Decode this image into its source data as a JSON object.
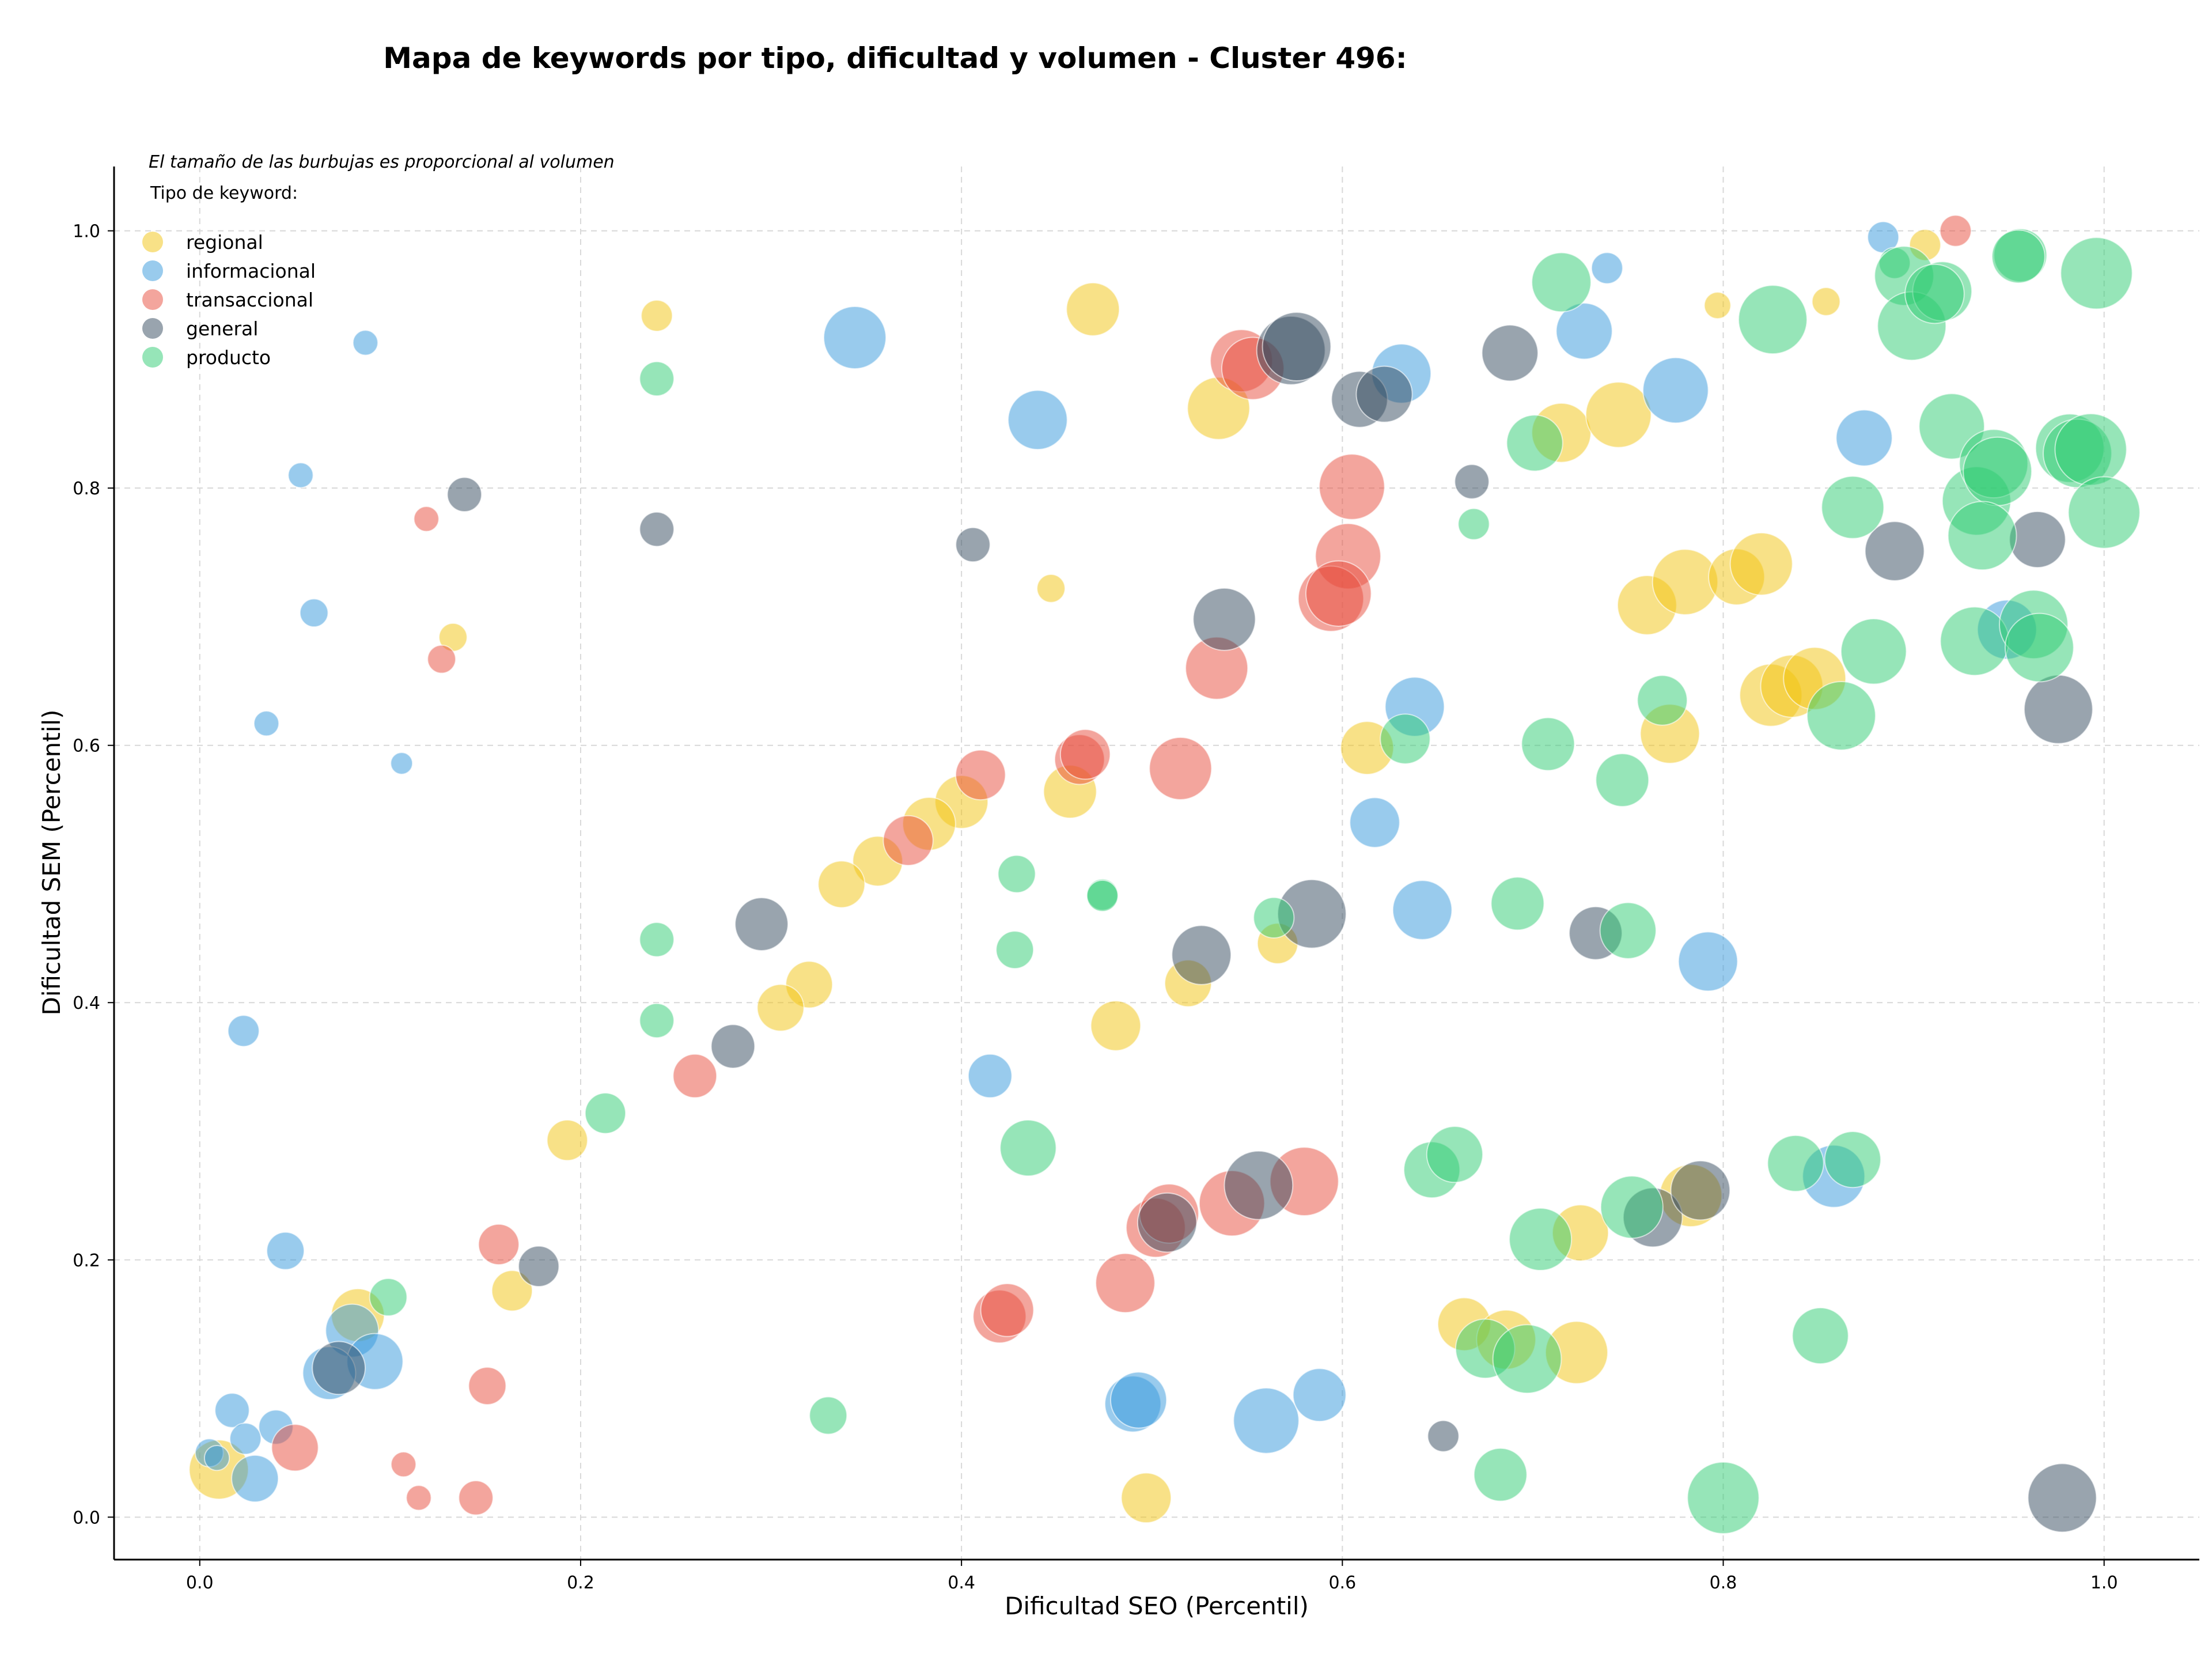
{
  "chart_data": {
    "type": "scatter",
    "title": "Mapa de keywords por tipo, dificultad y volumen - Cluster 496:",
    "xlabel": "Dificultad SEO (Percentil)",
    "ylabel": "Dificultad SEM (Percentil)",
    "xlim": [
      -0.045,
      1.05
    ],
    "ylim": [
      -0.033,
      1.05
    ],
    "xticks": [
      "0.0",
      "0.2",
      "0.4",
      "0.6",
      "0.8",
      "1.0"
    ],
    "yticks": [
      "0.0",
      "0.2",
      "0.4",
      "0.6",
      "0.8",
      "1.0"
    ],
    "grid": true,
    "size_note": "El tamaño de las burbujas es proporcional al volumen",
    "legend_title": "Tipo de keyword:",
    "legend_position": "top-left",
    "series": [
      {
        "name": "regional",
        "color": "#f1c40f",
        "points": [
          [
            0.24,
            0.934,
            20
          ],
          [
            0.469,
            0.939,
            34
          ],
          [
            0.447,
            0.722,
            18
          ],
          [
            0.133,
            0.684,
            18
          ],
          [
            0.535,
            0.862,
            40
          ],
          [
            0.715,
            0.843,
            38
          ],
          [
            0.745,
            0.857,
            42
          ],
          [
            0.797,
            0.942,
            17
          ],
          [
            0.854,
            0.945,
            18
          ],
          [
            0.906,
            0.989,
            20
          ],
          [
            0.76,
            0.709,
            38
          ],
          [
            0.78,
            0.727,
            42
          ],
          [
            0.807,
            0.731,
            36
          ],
          [
            0.82,
            0.741,
            40
          ],
          [
            0.613,
            0.598,
            34
          ],
          [
            0.772,
            0.609,
            38
          ],
          [
            0.825,
            0.639,
            40
          ],
          [
            0.836,
            0.646,
            40
          ],
          [
            0.848,
            0.652,
            40
          ],
          [
            0.457,
            0.564,
            34
          ],
          [
            0.4,
            0.556,
            34
          ],
          [
            0.383,
            0.539,
            34
          ],
          [
            0.356,
            0.51,
            32
          ],
          [
            0.337,
            0.492,
            30
          ],
          [
            0.519,
            0.415,
            30
          ],
          [
            0.566,
            0.446,
            26
          ],
          [
            0.481,
            0.382,
            32
          ],
          [
            0.32,
            0.414,
            30
          ],
          [
            0.305,
            0.396,
            30
          ],
          [
            0.193,
            0.293,
            26
          ],
          [
            0.164,
            0.176,
            26
          ],
          [
            0.083,
            0.157,
            34
          ],
          [
            0.01,
            0.037,
            38
          ],
          [
            0.497,
            0.015,
            32
          ],
          [
            0.664,
            0.15,
            34
          ],
          [
            0.686,
            0.138,
            38
          ],
          [
            0.725,
            0.221,
            36
          ],
          [
            0.723,
            0.128,
            40
          ],
          [
            0.783,
            0.25,
            40
          ]
        ]
      },
      {
        "name": "informacional",
        "color": "#3498db",
        "points": [
          [
            0.087,
            0.913,
            16
          ],
          [
            0.344,
            0.917,
            40
          ],
          [
            0.44,
            0.853,
            38
          ],
          [
            0.053,
            0.81,
            16
          ],
          [
            0.06,
            0.703,
            18
          ],
          [
            0.035,
            0.617,
            16
          ],
          [
            0.106,
            0.586,
            14
          ],
          [
            0.023,
            0.378,
            20
          ],
          [
            0.045,
            0.207,
            24
          ],
          [
            0.08,
            0.145,
            34
          ],
          [
            0.092,
            0.121,
            36
          ],
          [
            0.068,
            0.112,
            34
          ],
          [
            0.017,
            0.083,
            22
          ],
          [
            0.04,
            0.07,
            22
          ],
          [
            0.024,
            0.061,
            20
          ],
          [
            0.005,
            0.05,
            18
          ],
          [
            0.009,
            0.046,
            16
          ],
          [
            0.029,
            0.03,
            30
          ],
          [
            0.415,
            0.343,
            28
          ],
          [
            0.49,
            0.088,
            36
          ],
          [
            0.493,
            0.091,
            36
          ],
          [
            0.56,
            0.075,
            42
          ],
          [
            0.588,
            0.095,
            34
          ],
          [
            0.617,
            0.54,
            32
          ],
          [
            0.642,
            0.472,
            38
          ],
          [
            0.638,
            0.63,
            38
          ],
          [
            0.631,
            0.889,
            38
          ],
          [
            0.727,
            0.922,
            36
          ],
          [
            0.775,
            0.876,
            42
          ],
          [
            0.792,
            0.432,
            38
          ],
          [
            0.874,
            0.839,
            36
          ],
          [
            0.884,
            0.995,
            20
          ],
          [
            0.739,
            0.971,
            20
          ],
          [
            0.858,
            0.265,
            40
          ],
          [
            0.949,
            0.69,
            38
          ]
        ]
      },
      {
        "name": "transaccional",
        "color": "#e74c3c",
        "points": [
          [
            0.119,
            0.776,
            16
          ],
          [
            0.127,
            0.667,
            18
          ],
          [
            0.41,
            0.577,
            32
          ],
          [
            0.462,
            0.589,
            32
          ],
          [
            0.465,
            0.593,
            32
          ],
          [
            0.372,
            0.526,
            32
          ],
          [
            0.515,
            0.582,
            40
          ],
          [
            0.534,
            0.66,
            40
          ],
          [
            0.547,
            0.899,
            40
          ],
          [
            0.553,
            0.893,
            40
          ],
          [
            0.605,
            0.801,
            42
          ],
          [
            0.603,
            0.747,
            42
          ],
          [
            0.594,
            0.714,
            42
          ],
          [
            0.598,
            0.718,
            42
          ],
          [
            0.26,
            0.343,
            28
          ],
          [
            0.157,
            0.212,
            26
          ],
          [
            0.151,
            0.102,
            24
          ],
          [
            0.05,
            0.054,
            30
          ],
          [
            0.107,
            0.041,
            16
          ],
          [
            0.145,
            0.015,
            22
          ],
          [
            0.115,
            0.015,
            16
          ],
          [
            0.42,
            0.156,
            34
          ],
          [
            0.424,
            0.161,
            34
          ],
          [
            0.486,
            0.182,
            38
          ],
          [
            0.502,
            0.225,
            38
          ],
          [
            0.509,
            0.236,
            38
          ],
          [
            0.542,
            0.244,
            42
          ],
          [
            0.58,
            0.261,
            44
          ],
          [
            0.922,
            1.0,
            20
          ]
        ]
      },
      {
        "name": "general",
        "color": "#34495e",
        "points": [
          [
            0.139,
            0.795,
            22
          ],
          [
            0.24,
            0.768,
            22
          ],
          [
            0.406,
            0.756,
            22
          ],
          [
            0.573,
            0.907,
            44
          ],
          [
            0.576,
            0.91,
            44
          ],
          [
            0.609,
            0.869,
            36
          ],
          [
            0.622,
            0.873,
            36
          ],
          [
            0.668,
            0.805,
            22
          ],
          [
            0.688,
            0.905,
            36
          ],
          [
            0.538,
            0.698,
            40
          ],
          [
            0.295,
            0.461,
            34
          ],
          [
            0.28,
            0.366,
            28
          ],
          [
            0.178,
            0.195,
            26
          ],
          [
            0.073,
            0.116,
            34
          ],
          [
            0.526,
            0.437,
            38
          ],
          [
            0.584,
            0.469,
            44
          ],
          [
            0.508,
            0.229,
            38
          ],
          [
            0.556,
            0.258,
            44
          ],
          [
            0.733,
            0.454,
            34
          ],
          [
            0.763,
            0.233,
            38
          ],
          [
            0.788,
            0.254,
            38
          ],
          [
            0.89,
            0.751,
            38
          ],
          [
            0.965,
            0.76,
            36
          ],
          [
            0.976,
            0.628,
            44
          ],
          [
            0.653,
            0.063,
            20
          ],
          [
            0.978,
            0.015,
            44
          ]
        ]
      },
      {
        "name": "producto",
        "color": "#2ecc71",
        "points": [
          [
            0.24,
            0.885,
            22
          ],
          [
            0.669,
            0.772,
            20
          ],
          [
            0.701,
            0.835,
            36
          ],
          [
            0.715,
            0.96,
            38
          ],
          [
            0.826,
            0.931,
            44
          ],
          [
            0.868,
            0.785,
            40
          ],
          [
            0.879,
            0.673,
            42
          ],
          [
            0.862,
            0.623,
            44
          ],
          [
            0.768,
            0.635,
            32
          ],
          [
            0.633,
            0.605,
            32
          ],
          [
            0.708,
            0.601,
            34
          ],
          [
            0.747,
            0.573,
            34
          ],
          [
            0.429,
            0.5,
            24
          ],
          [
            0.474,
            0.484,
            20
          ],
          [
            0.474,
            0.483,
            20
          ],
          [
            0.564,
            0.466,
            26
          ],
          [
            0.692,
            0.477,
            34
          ],
          [
            0.75,
            0.456,
            36
          ],
          [
            0.428,
            0.441,
            24
          ],
          [
            0.24,
            0.449,
            22
          ],
          [
            0.24,
            0.386,
            22
          ],
          [
            0.213,
            0.314,
            26
          ],
          [
            0.435,
            0.287,
            36
          ],
          [
            0.099,
            0.171,
            24
          ],
          [
            0.33,
            0.079,
            24
          ],
          [
            0.647,
            0.27,
            36
          ],
          [
            0.659,
            0.282,
            36
          ],
          [
            0.675,
            0.131,
            38
          ],
          [
            0.697,
            0.123,
            44
          ],
          [
            0.704,
            0.216,
            40
          ],
          [
            0.752,
            0.241,
            40
          ],
          [
            0.838,
            0.275,
            36
          ],
          [
            0.868,
            0.278,
            36
          ],
          [
            0.851,
            0.141,
            36
          ],
          [
            0.683,
            0.033,
            34
          ],
          [
            0.8,
            0.015,
            46
          ],
          [
            0.89,
            0.975,
            20
          ],
          [
            0.895,
            0.965,
            38
          ],
          [
            0.899,
            0.926,
            44
          ],
          [
            0.915,
            0.953,
            38
          ],
          [
            0.911,
            0.951,
            38
          ],
          [
            0.956,
            0.981,
            34
          ],
          [
            0.955,
            0.98,
            34
          ],
          [
            0.996,
            0.967,
            46
          ],
          [
            0.92,
            0.848,
            42
          ],
          [
            0.933,
            0.79,
            44
          ],
          [
            0.942,
            0.819,
            44
          ],
          [
            0.944,
            0.813,
            44
          ],
          [
            0.982,
            0.831,
            44
          ],
          [
            0.986,
            0.827,
            44
          ],
          [
            0.993,
            0.83,
            46
          ],
          [
            1.0,
            0.781,
            46
          ],
          [
            0.936,
            0.763,
            44
          ],
          [
            0.932,
            0.681,
            44
          ],
          [
            0.963,
            0.694,
            44
          ],
          [
            0.966,
            0.676,
            44
          ]
        ]
      }
    ]
  }
}
